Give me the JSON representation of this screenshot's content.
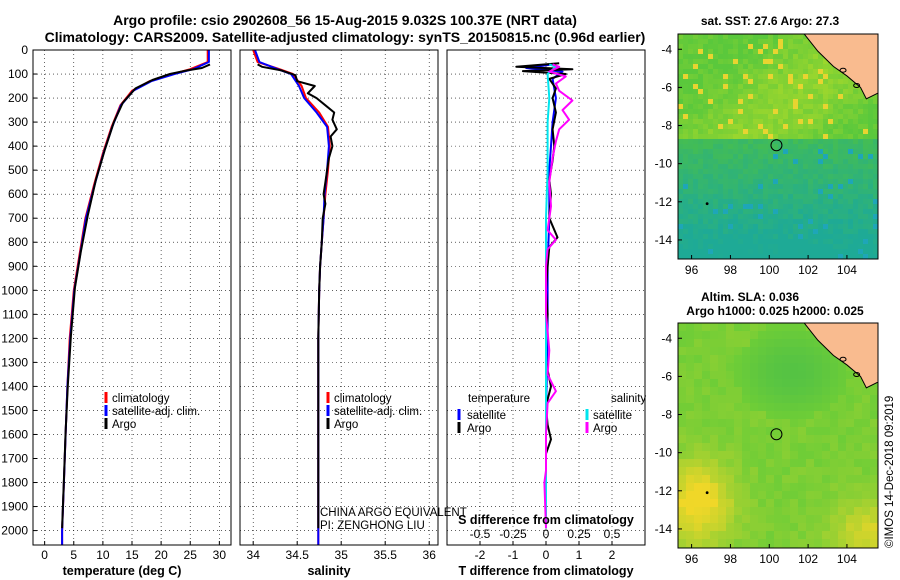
{
  "header": {
    "title_line1": "Argo profile: csio 2902608_56 15-Aug-2015 9.032S 100.37E (NRT data)",
    "title_line2": "Climatology: CARS2009. Satellite-adjusted climatology: synTS_20150815.nc (0.96d earlier)"
  },
  "colors": {
    "climatology": "#ff0000",
    "satellite": "#0000ff",
    "argo": "#000000",
    "s_satellite": "#00e5ee",
    "s_argo": "#ff00ff",
    "land": "#f9bb8f",
    "ocean_green": "#3fcf3f"
  },
  "depth_axis": {
    "ticks": [
      0,
      100,
      200,
      300,
      400,
      500,
      600,
      700,
      800,
      900,
      1000,
      1100,
      1200,
      1300,
      1400,
      1500,
      1600,
      1700,
      1800,
      1900,
      2000
    ],
    "range": [
      0,
      2060
    ]
  },
  "chart_data": [
    {
      "type": "line",
      "name": "temperature",
      "xlabel": "temperature (deg C)",
      "ylabel": "depth",
      "xlim": [
        -2,
        32
      ],
      "ylim": [
        2060,
        0
      ],
      "xticks": [
        0,
        5,
        10,
        15,
        20,
        25,
        30
      ],
      "legend": [
        "climatology",
        "satellite-adj. clim.",
        "Argo"
      ],
      "legend_position": "bottom-right",
      "series": [
        {
          "name": "climatology",
          "color_key": "climatology",
          "points": [
            [
              28,
              0
            ],
            [
              28,
              50
            ],
            [
              25,
              80
            ],
            [
              22,
              100
            ],
            [
              18,
              130
            ],
            [
              15,
              170
            ],
            [
              13,
              230
            ],
            [
              11.5,
              320
            ],
            [
              10,
              430
            ],
            [
              8.5,
              560
            ],
            [
              7,
              700
            ],
            [
              6,
              850
            ],
            [
              5,
              1000
            ],
            [
              4.3,
              1200
            ],
            [
              3.9,
              1400
            ],
            [
              3.6,
              1600
            ],
            [
              3.3,
              1800
            ],
            [
              3.0,
              2000
            ],
            [
              3.0,
              2060
            ]
          ]
        },
        {
          "name": "satellite-adj. clim.",
          "color_key": "satellite",
          "points": [
            [
              28.2,
              0
            ],
            [
              28.2,
              50
            ],
            [
              25.5,
              80
            ],
            [
              22.3,
              100
            ],
            [
              18.3,
              130
            ],
            [
              15.2,
              170
            ],
            [
              13.1,
              230
            ],
            [
              11.6,
              320
            ],
            [
              10.1,
              430
            ],
            [
              8.6,
              560
            ],
            [
              7.1,
              700
            ],
            [
              6.1,
              850
            ],
            [
              5.1,
              1000
            ],
            [
              4.4,
              1200
            ],
            [
              3.9,
              1400
            ],
            [
              3.6,
              1600
            ],
            [
              3.3,
              1800
            ],
            [
              3.0,
              2000
            ],
            [
              3.0,
              2060
            ]
          ]
        },
        {
          "name": "Argo",
          "color_key": "argo",
          "points": [
            [
              28.4,
              60
            ],
            [
              27,
              75
            ],
            [
              24.5,
              85
            ],
            [
              21.5,
              100
            ],
            [
              18.5,
              125
            ],
            [
              15.6,
              160
            ],
            [
              13.4,
              220
            ],
            [
              11.9,
              300
            ],
            [
              10.4,
              410
            ],
            [
              8.8,
              540
            ],
            [
              7.4,
              690
            ],
            [
              6.2,
              840
            ],
            [
              5.2,
              990
            ],
            [
              4.5,
              1190
            ],
            [
              4.0,
              1390
            ],
            [
              3.6,
              1590
            ],
            [
              3.3,
              1790
            ],
            [
              3.0,
              1990
            ]
          ]
        }
      ]
    },
    {
      "type": "line",
      "name": "salinity",
      "xlabel": "salinity",
      "ylabel": "depth",
      "xlim": [
        33.85,
        36.1
      ],
      "ylim": [
        2060,
        0
      ],
      "xticks": [
        34,
        34.5,
        35,
        35.5,
        36
      ],
      "legend": [
        "climatology",
        "satellite-adj. clim.",
        "Argo"
      ],
      "legend_position": "bottom-right",
      "annotations": [
        "CHINA ARGO EQUIVALENT",
        "PI: ZENGHONG LIU"
      ],
      "series": [
        {
          "name": "climatology",
          "color_key": "climatology",
          "points": [
            [
              34.0,
              0
            ],
            [
              34.05,
              50
            ],
            [
              34.3,
              80
            ],
            [
              34.45,
              100
            ],
            [
              34.55,
              150
            ],
            [
              34.6,
              200
            ],
            [
              34.75,
              260
            ],
            [
              34.85,
              320
            ],
            [
              34.87,
              400
            ],
            [
              34.85,
              500
            ],
            [
              34.82,
              600
            ],
            [
              34.8,
              700
            ],
            [
              34.78,
              800
            ],
            [
              34.76,
              900
            ],
            [
              34.75,
              1000
            ],
            [
              34.74,
              1200
            ],
            [
              34.74,
              1400
            ],
            [
              34.74,
              1600
            ],
            [
              34.74,
              1800
            ],
            [
              34.74,
              2000
            ],
            [
              34.74,
              2060
            ]
          ]
        },
        {
          "name": "satellite-adj. clim.",
          "color_key": "satellite",
          "points": [
            [
              34.02,
              0
            ],
            [
              34.07,
              50
            ],
            [
              34.28,
              80
            ],
            [
              34.43,
              100
            ],
            [
              34.52,
              150
            ],
            [
              34.58,
              200
            ],
            [
              34.72,
              260
            ],
            [
              34.84,
              320
            ],
            [
              34.86,
              400
            ],
            [
              34.84,
              500
            ],
            [
              34.81,
              600
            ],
            [
              34.8,
              700
            ],
            [
              34.78,
              800
            ],
            [
              34.76,
              900
            ],
            [
              34.75,
              1000
            ],
            [
              34.74,
              1200
            ],
            [
              34.74,
              1400
            ],
            [
              34.74,
              1600
            ],
            [
              34.74,
              1800
            ],
            [
              34.74,
              2000
            ],
            [
              34.74,
              2060
            ]
          ]
        },
        {
          "name": "Argo",
          "color_key": "argo",
          "points": [
            [
              34.05,
              60
            ],
            [
              34.1,
              70
            ],
            [
              34.32,
              85
            ],
            [
              34.48,
              105
            ],
            [
              34.5,
              130
            ],
            [
              34.7,
              150
            ],
            [
              34.62,
              180
            ],
            [
              34.72,
              200
            ],
            [
              34.82,
              230
            ],
            [
              34.92,
              260
            ],
            [
              34.9,
              290
            ],
            [
              34.95,
              330
            ],
            [
              34.88,
              360
            ],
            [
              34.9,
              400
            ],
            [
              34.86,
              450
            ],
            [
              34.84,
              500
            ],
            [
              34.82,
              550
            ],
            [
              34.8,
              600
            ],
            [
              34.82,
              640
            ],
            [
              34.79,
              700
            ],
            [
              34.78,
              800
            ],
            [
              34.76,
              900
            ],
            [
              34.75,
              1000
            ],
            [
              34.74,
              1200
            ],
            [
              34.74,
              1400
            ],
            [
              34.74,
              1600
            ],
            [
              34.74,
              1800
            ],
            [
              34.74,
              1990
            ]
          ]
        }
      ]
    },
    {
      "type": "line",
      "name": "difference from climatology",
      "xlabel": "T difference from climatology",
      "xlabel_secondary": "S difference from climatology",
      "ylabel": "depth",
      "xlim": [
        -3,
        3
      ],
      "ylim": [
        2060,
        0
      ],
      "xticks": [
        -2,
        -1,
        0,
        1,
        2
      ],
      "xticks_secondary_labels": [
        "-0.5",
        "-0.25",
        "0",
        "0.25",
        "0.5"
      ],
      "xticks_secondary_values": [
        -2,
        -1,
        0,
        1,
        2
      ],
      "legend_titles": [
        "temperature",
        "salinity"
      ],
      "legend": [
        "satellite",
        "Argo",
        "satellite",
        "Argo"
      ],
      "legend_position": "bottom",
      "series": [
        {
          "name": "T satellite",
          "color_key": "satellite",
          "points": [
            [
              0.2,
              60
            ],
            [
              -0.6,
              75
            ],
            [
              0.5,
              90
            ],
            [
              0.2,
              120
            ],
            [
              0.3,
              200
            ],
            [
              0.2,
              300
            ],
            [
              0.15,
              400
            ],
            [
              0.1,
              500
            ],
            [
              0.1,
              700
            ],
            [
              0.05,
              900
            ],
            [
              0.05,
              1200
            ],
            [
              0.0,
              1500
            ],
            [
              0.0,
              1800
            ],
            [
              0.0,
              1990
            ]
          ]
        },
        {
          "name": "T Argo",
          "color_key": "argo",
          "points": [
            [
              0.4,
              55
            ],
            [
              -0.9,
              70
            ],
            [
              0.8,
              80
            ],
            [
              -0.7,
              88
            ],
            [
              0.6,
              100
            ],
            [
              0.1,
              120
            ],
            [
              0.3,
              160
            ],
            [
              0.2,
              200
            ],
            [
              0.3,
              260
            ],
            [
              0.2,
              330
            ],
            [
              0.25,
              400
            ],
            [
              0.2,
              460
            ],
            [
              0.1,
              540
            ],
            [
              0.15,
              600
            ],
            [
              0.1,
              700
            ],
            [
              0.35,
              780
            ],
            [
              0.1,
              820
            ],
            [
              0.05,
              900
            ],
            [
              0.0,
              1000
            ],
            [
              0.05,
              1100
            ],
            [
              0.0,
              1200
            ],
            [
              0.0,
              1300
            ],
            [
              0.15,
              1400
            ],
            [
              0.0,
              1480
            ],
            [
              0.05,
              1560
            ],
            [
              0.15,
              1620
            ],
            [
              0.0,
              1680
            ],
            [
              0.0,
              1800
            ],
            [
              0.0,
              1990
            ]
          ]
        },
        {
          "name": "S satellite",
          "color_key": "s_satellite",
          "points": [
            [
              0.1,
              60
            ],
            [
              0.3,
              70
            ],
            [
              0.05,
              100
            ],
            [
              0.1,
              200
            ],
            [
              0.05,
              300
            ],
            [
              0.05,
              500
            ],
            [
              0.0,
              700
            ],
            [
              0.0,
              900
            ],
            [
              0.0,
              1200
            ],
            [
              0.0,
              1500
            ],
            [
              0.0,
              1800
            ],
            [
              0.0,
              1990
            ]
          ]
        },
        {
          "name": "S Argo",
          "color_key": "s_argo",
          "points": [
            [
              0.2,
              60
            ],
            [
              0.4,
              70
            ],
            [
              0.1,
              90
            ],
            [
              0.6,
              110
            ],
            [
              0.3,
              140
            ],
            [
              0.4,
              170
            ],
            [
              0.8,
              210
            ],
            [
              0.5,
              250
            ],
            [
              0.7,
              290
            ],
            [
              0.4,
              330
            ],
            [
              0.3,
              380
            ],
            [
              0.2,
              450
            ],
            [
              0.1,
              550
            ],
            [
              0.15,
              650
            ],
            [
              0.05,
              750
            ],
            [
              0.3,
              790
            ],
            [
              0.05,
              830
            ],
            [
              0.0,
              900
            ],
            [
              0.0,
              1100
            ],
            [
              0.1,
              1250
            ],
            [
              0.05,
              1350
            ],
            [
              0.3,
              1420
            ],
            [
              0.05,
              1470
            ],
            [
              0.0,
              1600
            ],
            [
              0.0,
              1750
            ],
            [
              -0.05,
              1800
            ],
            [
              0.0,
              1990
            ]
          ]
        }
      ]
    },
    {
      "type": "heatmap",
      "name": "sst_map",
      "title": "sat. SST: 27.6 Argo: 27.3",
      "xlim": [
        95.3,
        105.6
      ],
      "ylim": [
        -15,
        -3.2
      ],
      "xticks": [
        96,
        98,
        100,
        102,
        104
      ],
      "yticks": [
        -4,
        -6,
        -8,
        -10,
        -12,
        -14
      ],
      "marker": [
        100.37,
        -9.032
      ]
    },
    {
      "type": "heatmap",
      "name": "sla_map",
      "title_line1": "Altim. SLA: 0.036",
      "title_line2": "Argo h1000: 0.025 h2000: 0.025",
      "xlim": [
        95.3,
        105.6
      ],
      "ylim": [
        -15,
        -3.2
      ],
      "xticks": [
        96,
        98,
        100,
        102,
        104
      ],
      "yticks": [
        -4,
        -6,
        -8,
        -10,
        -12,
        -14
      ],
      "marker": [
        100.37,
        -9.032
      ]
    }
  ],
  "footer": {
    "stamp": "©IMOS 14-Dec-2018 09:2019"
  }
}
